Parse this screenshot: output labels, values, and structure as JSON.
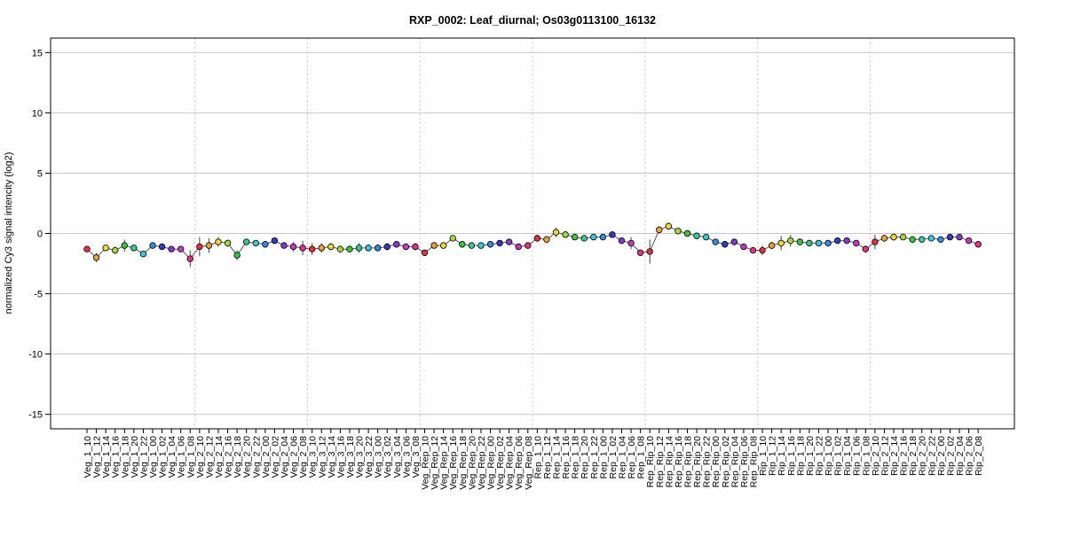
{
  "chart_data": {
    "type": "line",
    "title": "RXP_0002: Leaf_diurnal; Os03g0113100_16132",
    "xlabel": "",
    "ylabel": "normalized Cy3 signal intencity (log2)",
    "ylim": [
      -16.2,
      16.2
    ],
    "yticks": [
      -15,
      -10,
      -5,
      0,
      5,
      10,
      15
    ],
    "grid": true,
    "legend": "none",
    "line_color": "#555555",
    "groups": [
      {
        "name": "Veg_1",
        "labels": [
          "Veg_1_10",
          "Veg_1_12",
          "Veg_1_14",
          "Veg_1_16",
          "Veg_1_18",
          "Veg_1_20",
          "Veg_1_22",
          "Veg_1_00",
          "Veg_1_02",
          "Veg_1_04",
          "Veg_1_06",
          "Veg_1_08"
        ]
      },
      {
        "name": "Veg_2",
        "labels": [
          "Veg_2_10",
          "Veg_2_12",
          "Veg_2_14",
          "Veg_2_16",
          "Veg_2_18",
          "Veg_2_20",
          "Veg_2_22",
          "Veg_2_00",
          "Veg_2_02",
          "Veg_2_04",
          "Veg_2_06",
          "Veg_2_08"
        ]
      },
      {
        "name": "Veg_3",
        "labels": [
          "Veg_3_10",
          "Veg_3_12",
          "Veg_3_14",
          "Veg_3_16",
          "Veg_3_18",
          "Veg_3_20",
          "Veg_3_22",
          "Veg_3_00",
          "Veg_3_02",
          "Veg_3_04",
          "Veg_3_06",
          "Veg_3_08"
        ]
      },
      {
        "name": "Veg_Rep",
        "labels": [
          "Veg_Rep_10",
          "Veg_Rep_12",
          "Veg_Rep_14",
          "Veg_Rep_16",
          "Veg_Rep_18",
          "Veg_Rep_20",
          "Veg_Rep_22",
          "Veg_Rep_00",
          "Veg_Rep_02",
          "Veg_Rep_04",
          "Veg_Rep_06",
          "Veg_Rep_08"
        ]
      },
      {
        "name": "Rep_1",
        "labels": [
          "Rep_1_10",
          "Rep_1_12",
          "Rep_1_14",
          "Rep_1_16",
          "Rep_1_18",
          "Rep_1_20",
          "Rep_1_22",
          "Rep_1_00",
          "Rep_1_02",
          "Rep_1_04",
          "Rep_1_06",
          "Rep_1_08"
        ]
      },
      {
        "name": "Rep_Rip",
        "labels": [
          "Rep_Rip_10",
          "Rep_Rip_12",
          "Rep_Rip_14",
          "Rep_Rip_16",
          "Rep_Rip_18",
          "Rep_Rip_20",
          "Rep_Rip_22",
          "Rep_Rip_00",
          "Rep_Rip_02",
          "Rep_Rip_04",
          "Rep_Rip_06",
          "Rep_Rip_08"
        ]
      },
      {
        "name": "Rip_1",
        "labels": [
          "Rip_1_10",
          "Rip_1_12",
          "Rip_1_14",
          "Rip_1_16",
          "Rip_1_18",
          "Rip_1_20",
          "Rip_1_22",
          "Rip_1_00",
          "Rip_1_02",
          "Rip_1_04",
          "Rip_1_06",
          "Rip_1_08"
        ]
      },
      {
        "name": "Rip_2",
        "labels": [
          "Rip_2_10",
          "Rip_2_12",
          "Rip_2_14",
          "Rip_2_16",
          "Rip_2_18",
          "Rip_2_20",
          "Rip_2_22",
          "Rip_2_00",
          "Rip_2_02",
          "Rip_2_04",
          "Rip_2_06",
          "Rip_2_08"
        ]
      }
    ],
    "values": [
      -1.3,
      -2.0,
      -1.2,
      -1.4,
      -1.0,
      -1.2,
      -1.7,
      -1.0,
      -1.1,
      -1.3,
      -1.3,
      -2.1,
      -1.1,
      -1.0,
      -0.7,
      -0.8,
      -1.8,
      -0.7,
      -0.8,
      -0.9,
      -0.6,
      -1.0,
      -1.1,
      -1.2,
      -1.3,
      -1.2,
      -1.1,
      -1.3,
      -1.3,
      -1.2,
      -1.2,
      -1.2,
      -1.1,
      -0.9,
      -1.1,
      -1.1,
      -1.6,
      -1.0,
      -1.0,
      -0.4,
      -0.9,
      -1.0,
      -1.0,
      -0.9,
      -0.8,
      -0.7,
      -1.1,
      -1.0,
      -0.4,
      -0.5,
      0.1,
      -0.1,
      -0.3,
      -0.4,
      -0.3,
      -0.3,
      -0.1,
      -0.6,
      -0.8,
      -1.6,
      -1.5,
      0.3,
      0.6,
      0.2,
      0.0,
      -0.2,
      -0.3,
      -0.7,
      -0.9,
      -0.7,
      -1.1,
      -1.4,
      -1.4,
      -1.0,
      -0.8,
      -0.6,
      -0.7,
      -0.8,
      -0.8,
      -0.8,
      -0.6,
      -0.6,
      -0.8,
      -1.3,
      -0.7,
      -0.4,
      -0.3,
      -0.3,
      -0.5,
      -0.5,
      -0.4,
      -0.5,
      -0.3,
      -0.3,
      -0.6,
      -0.9
    ],
    "errors": [
      0.2,
      0.4,
      0.2,
      0.3,
      0.5,
      0.2,
      0.2,
      0.15,
      0.15,
      0.1,
      0.15,
      0.7,
      0.8,
      0.6,
      0.4,
      0.3,
      0.4,
      0.2,
      0.15,
      0.15,
      0.2,
      0.2,
      0.4,
      0.6,
      0.5,
      0.4,
      0.3,
      0.3,
      0.3,
      0.4,
      0.3,
      0.3,
      0.3,
      0.2,
      0.2,
      0.3,
      0.2,
      0.2,
      0.2,
      0.2,
      0.2,
      0.15,
      0.15,
      0.15,
      0.15,
      0.2,
      0.2,
      0.2,
      0.3,
      0.3,
      0.4,
      0.2,
      0.2,
      0.15,
      0.15,
      0.15,
      0.15,
      0.2,
      0.5,
      0.2,
      1.0,
      0.3,
      0.3,
      0.2,
      0.15,
      0.15,
      0.15,
      0.15,
      0.15,
      0.15,
      0.15,
      0.2,
      0.4,
      0.3,
      0.6,
      0.5,
      0.3,
      0.2,
      0.2,
      0.2,
      0.2,
      0.2,
      0.2,
      0.3,
      0.6,
      0.3,
      0.3,
      0.2,
      0.15,
      0.15,
      0.15,
      0.15,
      0.15,
      0.15,
      0.2,
      0.2
    ],
    "point_colors": [
      "#e8303a",
      "#e8a038",
      "#e8d838",
      "#a8d838",
      "#38c838",
      "#38c898",
      "#38c8d8",
      "#3888e8",
      "#3838c8",
      "#8838c8",
      "#c838c8",
      "#e8308a"
    ]
  }
}
